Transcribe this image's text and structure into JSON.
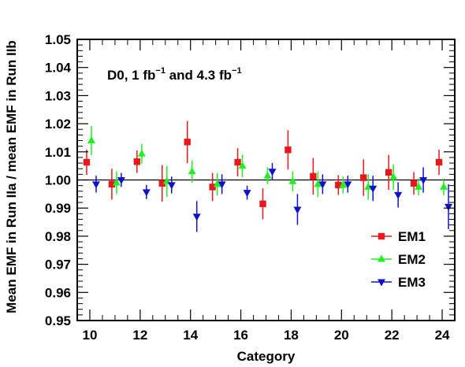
{
  "chart_data": {
    "type": "scatter",
    "xlabel": "Category",
    "ylabel": "Mean EMF in Run IIa / mean EMF in Run IIb",
    "annotation": {
      "prefix": "D0, 1 fb",
      "exp1": "−1",
      "middle": " and 4.3 fb",
      "exp2": "−1"
    },
    "xlim": [
      9.5,
      24.5
    ],
    "ylim": [
      0.95,
      1.05
    ],
    "xticks": [
      10,
      12,
      14,
      16,
      18,
      20,
      22,
      24
    ],
    "yticks": [
      0.95,
      0.96,
      0.97,
      0.98,
      0.99,
      1.0,
      1.01,
      1.02,
      1.03,
      1.04,
      1.05
    ],
    "ytick_labels": [
      "0.95",
      "0.96",
      "0.97",
      "0.98",
      "0.99",
      "1.00",
      "1.01",
      "1.02",
      "1.03",
      "1.04",
      "1.05"
    ],
    "reference_line": 1.0,
    "legend_position": "right",
    "series": [
      {
        "name": "EM1",
        "color": "#e8181c",
        "marker": "square",
        "x": [
          10,
          11,
          12,
          13,
          14,
          15,
          16,
          17,
          18,
          19,
          20,
          21,
          22,
          23,
          24
        ],
        "y": [
          1.0063,
          0.9985,
          1.0065,
          0.9988,
          1.0135,
          0.9975,
          1.0063,
          0.9915,
          1.0107,
          1.0013,
          0.9982,
          1.0008,
          1.0027,
          0.9988,
          1.0063
        ],
        "err": [
          0.0045,
          0.0055,
          0.004,
          0.0065,
          0.0075,
          0.005,
          0.005,
          0.0055,
          0.007,
          0.0065,
          0.0035,
          0.0065,
          0.0062,
          0.004,
          0.0045
        ]
      },
      {
        "name": "EM2",
        "color": "#22ee22",
        "marker": "triangle-up",
        "x": [
          10,
          11,
          12,
          13,
          14,
          15,
          16,
          17,
          18,
          19,
          20,
          21,
          22,
          23,
          24
        ],
        "y": [
          1.014,
          0.999,
          1.0093,
          0.9995,
          1.003,
          0.9985,
          1.005,
          1.0015,
          0.9995,
          0.9985,
          0.9982,
          0.9975,
          1.001,
          0.9975,
          0.9975
        ],
        "err": [
          0.0052,
          0.004,
          0.0035,
          0.0055,
          0.004,
          0.004,
          0.004,
          0.003,
          0.0035,
          0.0045,
          0.003,
          0.0045,
          0.0045,
          0.003,
          0.003
        ]
      },
      {
        "name": "EM3",
        "color": "#1010c8",
        "marker": "triangle-down",
        "x": [
          10,
          11,
          12,
          13,
          14,
          15,
          16,
          17,
          18,
          19,
          20,
          21,
          22,
          23,
          24
        ],
        "y": [
          0.9985,
          1.0,
          0.9957,
          0.9982,
          0.987,
          0.9985,
          0.9955,
          1.003,
          0.9895,
          0.9985,
          0.9985,
          0.997,
          0.9947,
          1.0,
          0.9905
        ],
        "err": [
          0.003,
          0.0025,
          0.0025,
          0.003,
          0.0055,
          0.0035,
          0.0025,
          0.003,
          0.0055,
          0.0035,
          0.003,
          0.0045,
          0.0045,
          0.0045,
          0.008
        ]
      }
    ]
  }
}
